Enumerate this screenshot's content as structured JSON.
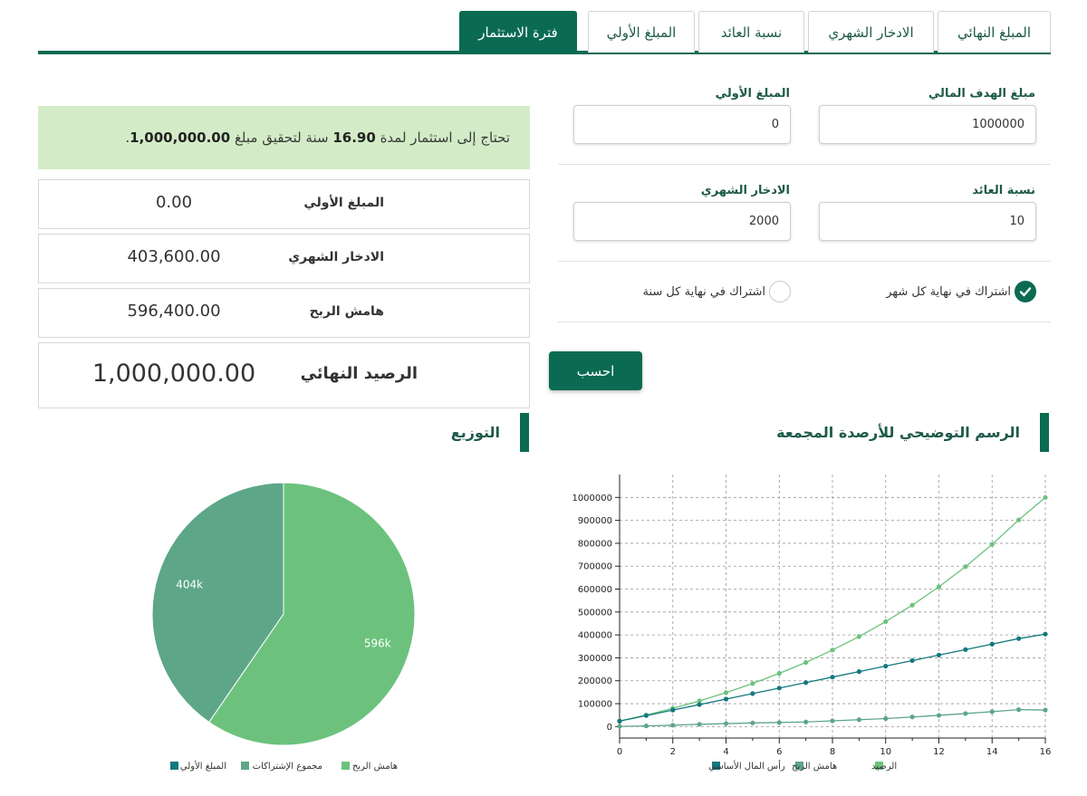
{
  "tabs": [
    {
      "label": "المبلغ النهائي",
      "active": false
    },
    {
      "label": "الادخار الشهري",
      "active": false
    },
    {
      "label": "نسبة العائد",
      "active": false
    },
    {
      "label": "المبلغ الأولي",
      "active": false
    },
    {
      "label": "فترة الاستثمار",
      "active": true
    }
  ],
  "form": {
    "goal_label": "مبلغ الهدف المالي",
    "goal_value": "1000000",
    "initial_label": "المبلغ الأولي",
    "initial_value": "0",
    "return_label": "نسبة العائد",
    "return_value": "10",
    "monthly_label": "الادخار الشهري",
    "monthly_value": "2000",
    "radio_monthly": "اشتراك في نهاية كل شهر",
    "radio_yearly": "اشتراك في نهاية كل سنة",
    "radio_selected": "monthly",
    "calc_button": "احسب"
  },
  "result": {
    "prefix": "تحتاج إلى استثمار لمدة",
    "years": "16.90",
    "middle": "سنة لتحقيق مبلغ",
    "amount": "1,000,000.00",
    "suffix": "."
  },
  "summary": [
    {
      "label": "المبلغ الأولي",
      "value": "0.00"
    },
    {
      "label": "الادخار الشهري",
      "value": "403,600.00"
    },
    {
      "label": "هامش الربح",
      "value": "596,400.00"
    },
    {
      "label": "الرصيد النهائي",
      "value": "1,000,000.00"
    }
  ],
  "sections": {
    "chart_title": "الرسم التوضيحي للأرصدة المجمعة",
    "pie_title": "التوزيع"
  },
  "colors": {
    "primary": "#0b6b52",
    "banner": "#d3ecc7",
    "balance": "#6cc27d",
    "profit": "#5da688",
    "principal": "#14787f"
  },
  "chart_data": [
    {
      "type": "line",
      "x": [
        0,
        1,
        2,
        3,
        4,
        5,
        6,
        7,
        8,
        9,
        10,
        11,
        12,
        13,
        14,
        15,
        16
      ],
      "series": [
        {
          "name": "الرصيد",
          "values": [
            24000,
            50500,
            79800,
            112000,
            148000,
            188000,
            232000,
            280000,
            334000,
            393000,
            458000,
            530000,
            610000,
            698000,
            795000,
            902000,
            1000000
          ]
        },
        {
          "name": "هامش الربح",
          "values": [
            1000,
            3000,
            6000,
            10000,
            13000,
            16000,
            18000,
            20000,
            25000,
            30000,
            35000,
            42000,
            49000,
            57000,
            65000,
            74000,
            72000
          ]
        },
        {
          "name": "رأس المال الأساسي",
          "values": [
            24000,
            48000,
            72000,
            96000,
            120000,
            144000,
            168000,
            192000,
            216000,
            240000,
            264000,
            288000,
            312000,
            336000,
            360000,
            384000,
            403600
          ]
        }
      ],
      "xticks": [
        "0",
        "2",
        "4",
        "6",
        "8",
        "10",
        "12",
        "14",
        "16"
      ],
      "yticks": [
        "0",
        "100000",
        "200000",
        "300000",
        "400000",
        "500000",
        "600000",
        "700000",
        "800000",
        "900000",
        "1000000"
      ],
      "xlim": [
        0,
        16
      ],
      "ylim": [
        -50000,
        1100000
      ],
      "grid": true,
      "legend": "bottom"
    },
    {
      "type": "pie",
      "slices": [
        {
          "name": "هامش الربح",
          "value": 596,
          "label": "596k"
        },
        {
          "name": "مجموع الإشتراكات",
          "value": 404,
          "label": "404k"
        },
        {
          "name": "المبلغ الأولي",
          "value": 0,
          "label": ""
        }
      ],
      "legend": "bottom"
    }
  ]
}
